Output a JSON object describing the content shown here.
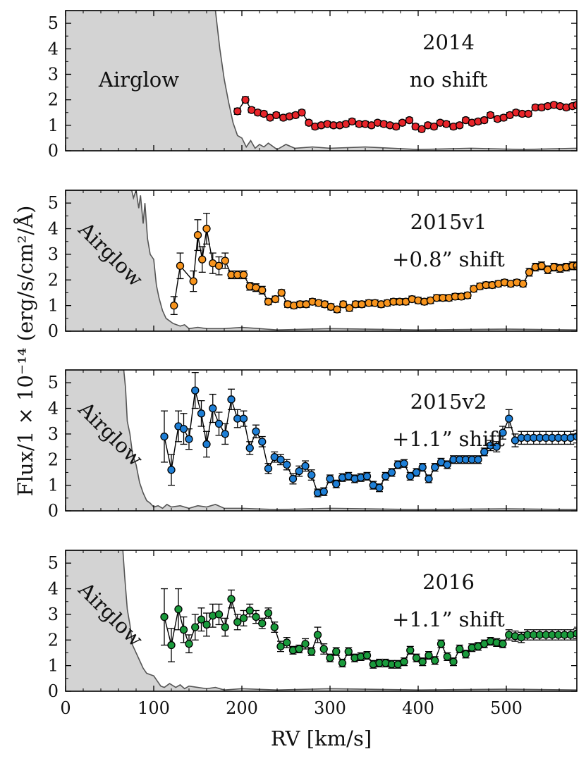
{
  "chart_data": {
    "type": "scatter",
    "layout": "4 stacked panels sharing the x axis",
    "xlabel": "RV [km/s]",
    "ylabel": "Flux/1 × 10⁻¹⁴ (erg/s/cm²/Å)",
    "xlim": [
      0,
      580
    ],
    "ylim": [
      0,
      5.5
    ],
    "xticks": [
      0,
      100,
      200,
      300,
      400,
      500
    ],
    "yticks": [
      0,
      1,
      2,
      3,
      4,
      5
    ],
    "airglow_label": "Airglow",
    "marker_edge_color": "#000000",
    "airglow_fill_color": "#d3d3d3",
    "airglow_line_color": "#555555",
    "panels": [
      {
        "title": "2014",
        "subtitle": "no shift",
        "color": "#e8252a",
        "airglow_label_rotated": false,
        "airglow": {
          "x": [
            0,
            60,
            170,
            175,
            180,
            185,
            190,
            195,
            200,
            205,
            210,
            215,
            220,
            225,
            230,
            240,
            250,
            260,
            280,
            300,
            340,
            400,
            460,
            520,
            580
          ],
          "y": [
            5.5,
            5.5,
            5.5,
            4.0,
            2.8,
            1.9,
            1.1,
            0.6,
            0.5,
            0.15,
            0.4,
            0.1,
            0.25,
            0.15,
            0.3,
            0.05,
            0.25,
            0.1,
            0.15,
            0.1,
            0.15,
            0.05,
            0.1,
            0.05,
            0.1
          ]
        },
        "points": {
          "x": [
            195,
            204,
            211,
            218,
            225,
            232,
            239,
            247,
            254,
            261,
            268,
            276,
            283,
            290,
            297,
            304,
            311,
            318,
            325,
            333,
            340,
            347,
            354,
            361,
            368,
            375,
            382,
            390,
            397,
            404,
            411,
            418,
            425,
            432,
            440,
            447,
            454,
            461,
            468,
            475,
            482,
            490,
            497,
            504,
            511,
            518,
            525,
            533,
            540,
            547,
            554,
            561,
            568,
            575,
            580
          ],
          "y": [
            1.55,
            2.0,
            1.6,
            1.5,
            1.45,
            1.3,
            1.4,
            1.3,
            1.35,
            1.4,
            1.5,
            1.1,
            0.95,
            1.0,
            1.05,
            1.0,
            1.0,
            1.05,
            1.15,
            1.05,
            1.05,
            1.0,
            1.1,
            1.05,
            1.0,
            0.95,
            1.1,
            1.2,
            0.95,
            0.85,
            1.0,
            0.95,
            1.1,
            1.05,
            0.95,
            1.0,
            1.2,
            1.1,
            1.15,
            1.2,
            1.4,
            1.25,
            1.3,
            1.4,
            1.5,
            1.45,
            1.45,
            1.7,
            1.7,
            1.75,
            1.8,
            1.75,
            1.7,
            1.75,
            1.8
          ],
          "err": [
            0.12,
            0.12,
            0.1,
            0.1,
            0.1,
            0.1,
            0.1,
            0.1,
            0.1,
            0.1,
            0.1,
            0.1,
            0.1,
            0.1,
            0.1,
            0.1,
            0.1,
            0.1,
            0.1,
            0.1,
            0.1,
            0.1,
            0.1,
            0.1,
            0.1,
            0.1,
            0.1,
            0.1,
            0.1,
            0.1,
            0.1,
            0.1,
            0.1,
            0.1,
            0.1,
            0.1,
            0.1,
            0.1,
            0.1,
            0.1,
            0.1,
            0.1,
            0.1,
            0.1,
            0.1,
            0.1,
            0.1,
            0.1,
            0.1,
            0.1,
            0.1,
            0.1,
            0.1,
            0.1,
            0.1
          ]
        }
      },
      {
        "title": "2015v1",
        "subtitle": "+0.8” shift",
        "color": "#f7941d",
        "airglow_label_rotated": true,
        "airglow": {
          "x": [
            0,
            75,
            77,
            80,
            83,
            85,
            88,
            90,
            93,
            96,
            100,
            103,
            106,
            110,
            114,
            118,
            122,
            126,
            130,
            135,
            140,
            150,
            160,
            180,
            200,
            240,
            300,
            400,
            500,
            580
          ],
          "y": [
            5.5,
            5.5,
            5.2,
            5.5,
            4.8,
            5.3,
            4.2,
            5.0,
            3.6,
            3.0,
            2.8,
            1.8,
            1.3,
            0.8,
            0.5,
            0.4,
            0.3,
            0.25,
            0.2,
            0.25,
            0.1,
            0.15,
            0.1,
            0.1,
            0.15,
            0.05,
            0.1,
            0.05,
            0.08,
            0.05
          ]
        },
        "points": {
          "x": [
            123,
            130,
            145,
            150,
            155,
            160,
            167,
            174,
            181,
            188,
            195,
            202,
            209,
            216,
            223,
            230,
            238,
            245,
            252,
            259,
            266,
            273,
            280,
            287,
            294,
            301,
            308,
            315,
            322,
            329,
            336,
            344,
            351,
            358,
            365,
            372,
            379,
            386,
            393,
            400,
            407,
            414,
            421,
            428,
            435,
            442,
            449,
            456,
            463,
            470,
            477,
            484,
            491,
            498,
            505,
            512,
            519,
            526,
            533,
            540,
            547,
            554,
            561,
            568,
            575,
            580
          ],
          "y": [
            1.0,
            2.55,
            1.95,
            3.75,
            2.8,
            4.0,
            2.65,
            2.55,
            2.75,
            2.2,
            2.2,
            2.2,
            1.75,
            1.7,
            1.6,
            1.15,
            1.25,
            1.5,
            1.05,
            1.0,
            1.05,
            1.05,
            1.15,
            1.1,
            1.05,
            0.95,
            0.85,
            1.05,
            0.9,
            1.05,
            1.05,
            1.1,
            1.1,
            1.05,
            1.1,
            1.15,
            1.15,
            1.15,
            1.25,
            1.2,
            1.15,
            1.2,
            1.3,
            1.3,
            1.3,
            1.35,
            1.35,
            1.4,
            1.65,
            1.75,
            1.8,
            1.8,
            1.85,
            1.9,
            1.85,
            1.9,
            1.85,
            2.3,
            2.5,
            2.55,
            2.4,
            2.5,
            2.45,
            2.5,
            2.55,
            2.55
          ],
          "err": [
            0.35,
            0.5,
            0.4,
            0.6,
            0.5,
            0.6,
            0.4,
            0.35,
            0.3,
            0.15,
            0.15,
            0.15,
            0.15,
            0.15,
            0.15,
            0.12,
            0.12,
            0.12,
            0.12,
            0.12,
            0.12,
            0.12,
            0.12,
            0.12,
            0.12,
            0.12,
            0.12,
            0.12,
            0.12,
            0.12,
            0.12,
            0.12,
            0.12,
            0.12,
            0.12,
            0.12,
            0.12,
            0.12,
            0.12,
            0.12,
            0.12,
            0.12,
            0.12,
            0.12,
            0.12,
            0.12,
            0.12,
            0.12,
            0.12,
            0.12,
            0.12,
            0.12,
            0.12,
            0.12,
            0.12,
            0.12,
            0.12,
            0.15,
            0.15,
            0.15,
            0.15,
            0.15,
            0.15,
            0.15,
            0.15,
            0.15
          ]
        }
      },
      {
        "title": "2015v2",
        "subtitle": "+1.1” shift",
        "color": "#1e7fd6",
        "airglow_label_rotated": true,
        "airglow": {
          "x": [
            0,
            66,
            68,
            70,
            73,
            76,
            80,
            84,
            88,
            92,
            96,
            100,
            105,
            110,
            115,
            120,
            130,
            140,
            150,
            160,
            170,
            180,
            200,
            240,
            300,
            400,
            500,
            580
          ],
          "y": [
            5.5,
            5.5,
            4.8,
            3.5,
            3.0,
            2.2,
            1.8,
            1.1,
            0.7,
            0.4,
            0.3,
            0.15,
            0.2,
            0.1,
            0.25,
            0.15,
            0.2,
            0.1,
            0.2,
            0.15,
            0.25,
            0.1,
            0.1,
            0.05,
            0.1,
            0.05,
            0.08,
            0.05
          ]
        },
        "points": {
          "x": [
            112,
            120,
            128,
            134,
            140,
            147,
            154,
            160,
            167,
            174,
            181,
            188,
            195,
            202,
            209,
            216,
            223,
            230,
            237,
            244,
            251,
            258,
            265,
            272,
            279,
            286,
            293,
            300,
            307,
            314,
            321,
            328,
            335,
            342,
            349,
            356,
            363,
            370,
            377,
            384,
            391,
            398,
            405,
            412,
            419,
            426,
            433,
            440,
            447,
            454,
            461,
            468,
            475,
            482,
            489,
            496,
            503,
            510,
            517,
            524,
            531,
            538,
            545,
            552,
            559,
            566,
            573,
            580
          ],
          "y": [
            2.9,
            1.6,
            3.3,
            3.2,
            2.8,
            4.7,
            3.8,
            2.6,
            4.0,
            3.4,
            3.0,
            4.35,
            3.6,
            3.6,
            2.45,
            3.1,
            2.7,
            1.65,
            2.1,
            2.0,
            1.8,
            1.25,
            1.55,
            1.75,
            1.4,
            0.7,
            0.75,
            1.25,
            1.05,
            1.3,
            1.35,
            1.25,
            1.3,
            1.35,
            1.0,
            0.9,
            1.35,
            1.5,
            1.8,
            1.85,
            1.35,
            1.5,
            1.7,
            1.25,
            1.7,
            1.9,
            1.8,
            2.0,
            2.0,
            2.0,
            2.0,
            2.0,
            2.3,
            2.55,
            2.5,
            3.05,
            3.6,
            2.75,
            2.85,
            2.85,
            2.85,
            2.85,
            2.85,
            2.85,
            2.85,
            2.85,
            2.85,
            2.9
          ],
          "err": [
            1.0,
            0.6,
            0.6,
            0.6,
            0.4,
            0.7,
            0.5,
            0.5,
            0.55,
            0.45,
            0.4,
            0.4,
            0.35,
            0.3,
            0.25,
            0.25,
            0.2,
            0.2,
            0.2,
            0.2,
            0.2,
            0.2,
            0.2,
            0.2,
            0.2,
            0.15,
            0.15,
            0.15,
            0.15,
            0.15,
            0.15,
            0.15,
            0.15,
            0.15,
            0.15,
            0.15,
            0.15,
            0.15,
            0.15,
            0.15,
            0.15,
            0.15,
            0.15,
            0.15,
            0.15,
            0.15,
            0.15,
            0.15,
            0.15,
            0.15,
            0.15,
            0.15,
            0.15,
            0.2,
            0.2,
            0.25,
            0.35,
            0.25,
            0.25,
            0.25,
            0.25,
            0.25,
            0.25,
            0.25,
            0.25,
            0.25,
            0.25,
            0.25
          ]
        }
      },
      {
        "title": "2016",
        "subtitle": "+1.1” shift",
        "color": "#1a9a3c",
        "airglow_label_rotated": true,
        "airglow": {
          "x": [
            0,
            65,
            67,
            70,
            73,
            76,
            80,
            84,
            88,
            92,
            96,
            100,
            104,
            108,
            112,
            118,
            125,
            130,
            135,
            140,
            150,
            160,
            170,
            180,
            200,
            240,
            300,
            400,
            500,
            580
          ],
          "y": [
            5.5,
            5.5,
            4.5,
            3.2,
            2.6,
            1.8,
            1.5,
            1.2,
            0.9,
            0.7,
            0.65,
            0.6,
            0.4,
            0.2,
            0.15,
            0.3,
            0.15,
            0.25,
            0.1,
            0.2,
            0.15,
            0.1,
            0.15,
            0.05,
            0.1,
            0.05,
            0.1,
            0.05,
            0.08,
            0.05
          ]
        },
        "points": {
          "x": [
            112,
            120,
            128,
            134,
            140,
            147,
            154,
            160,
            167,
            174,
            181,
            188,
            195,
            202,
            209,
            216,
            223,
            230,
            237,
            244,
            251,
            258,
            265,
            272,
            279,
            286,
            293,
            300,
            307,
            314,
            321,
            328,
            335,
            342,
            349,
            356,
            363,
            370,
            377,
            384,
            391,
            398,
            405,
            412,
            419,
            426,
            433,
            440,
            447,
            454,
            461,
            468,
            475,
            482,
            489,
            496,
            503,
            510,
            517,
            524,
            531,
            538,
            545,
            552,
            559,
            566,
            573,
            580
          ],
          "y": [
            2.9,
            1.8,
            3.2,
            2.4,
            1.85,
            2.5,
            2.8,
            2.6,
            2.95,
            3.0,
            2.5,
            3.6,
            2.7,
            2.85,
            3.15,
            2.9,
            2.65,
            3.05,
            2.5,
            1.75,
            1.9,
            1.6,
            1.65,
            1.85,
            1.55,
            2.2,
            1.65,
            1.3,
            1.55,
            1.1,
            1.55,
            1.3,
            1.35,
            1.4,
            1.05,
            1.1,
            1.1,
            1.05,
            1.05,
            1.15,
            1.6,
            1.3,
            1.15,
            1.4,
            1.2,
            1.85,
            1.35,
            1.15,
            1.65,
            1.45,
            1.7,
            1.75,
            1.85,
            1.95,
            1.9,
            1.85,
            2.2,
            2.15,
            2.1,
            2.2,
            2.2,
            2.2,
            2.2,
            2.2,
            2.2,
            2.2,
            2.2,
            2.25
          ],
          "err": [
            1.1,
            0.65,
            0.8,
            0.5,
            0.35,
            0.5,
            0.45,
            0.45,
            0.45,
            0.4,
            0.35,
            0.35,
            0.3,
            0.3,
            0.25,
            0.25,
            0.2,
            0.2,
            0.2,
            0.2,
            0.2,
            0.15,
            0.15,
            0.2,
            0.15,
            0.3,
            0.2,
            0.15,
            0.15,
            0.15,
            0.15,
            0.15,
            0.15,
            0.15,
            0.15,
            0.15,
            0.15,
            0.15,
            0.15,
            0.15,
            0.15,
            0.15,
            0.15,
            0.15,
            0.15,
            0.15,
            0.15,
            0.15,
            0.15,
            0.15,
            0.15,
            0.15,
            0.15,
            0.15,
            0.15,
            0.15,
            0.2,
            0.2,
            0.2,
            0.2,
            0.2,
            0.2,
            0.2,
            0.2,
            0.2,
            0.2,
            0.2,
            0.2
          ]
        }
      }
    ]
  }
}
